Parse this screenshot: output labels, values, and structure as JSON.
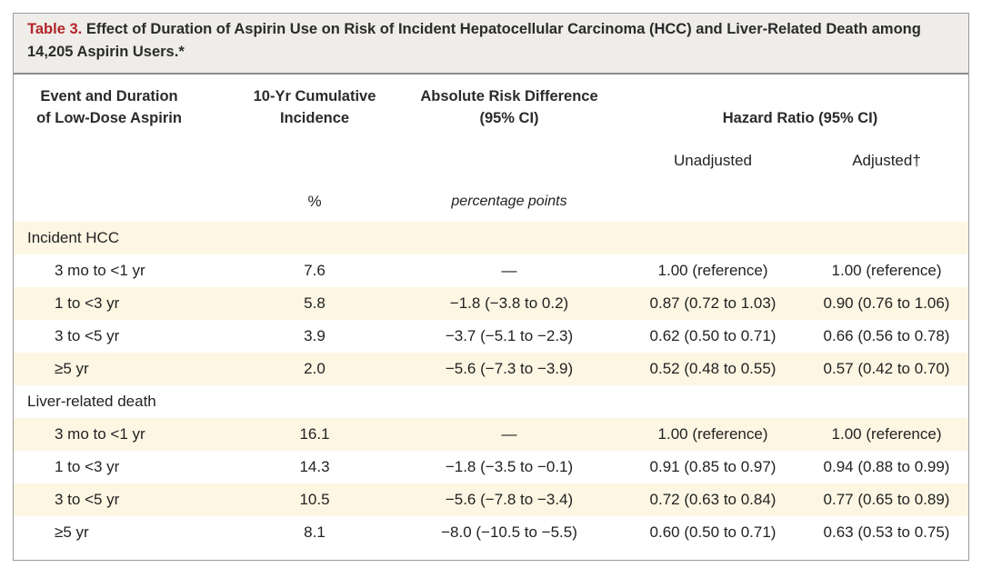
{
  "title": {
    "label": "Table 3.",
    "text": "Effect of Duration of Aspirin Use on Risk of Incident Hepatocellular Carcinoma (HCC) and Liver-Related Death among 14,205 Aspirin Users.*"
  },
  "header": {
    "event": [
      "Event and Duration",
      "of Low-Dose Aspirin"
    ],
    "incidence": [
      "10-Yr Cumulative",
      "Incidence"
    ],
    "risk": [
      "Absolute Risk Difference",
      "(95% CI)"
    ],
    "hazard": "Hazard Ratio (95% CI)",
    "unadjusted": "Unadjusted",
    "adjusted": "Adjusted†",
    "incidence_unit": "%",
    "risk_unit": "percentage points"
  },
  "table": {
    "groups": [
      {
        "label": "Incident HCC",
        "rows": [
          [
            "3 mo to <1 yr",
            "7.6",
            "—",
            "1.00 (reference)",
            "1.00 (reference)"
          ],
          [
            "1 to <3 yr",
            "5.8",
            "−1.8 (−3.8 to 0.2)",
            "0.87 (0.72 to 1.03)",
            "0.90 (0.76 to 1.06)"
          ],
          [
            "3 to <5 yr",
            "3.9",
            "−3.7 (−5.1 to −2.3)",
            "0.62 (0.50 to 0.71)",
            "0.66 (0.56 to 0.78)"
          ],
          [
            "≥5 yr",
            "2.0",
            "−5.6 (−7.3 to −3.9)",
            "0.52 (0.48 to 0.55)",
            "0.57 (0.42 to 0.70)"
          ]
        ]
      },
      {
        "label": "Liver-related death",
        "rows": [
          [
            "3 mo to <1 yr",
            "16.1",
            "—",
            "1.00 (reference)",
            "1.00 (reference)"
          ],
          [
            "1 to <3 yr",
            "14.3",
            "−1.8 (−3.5 to −0.1)",
            "0.91 (0.85 to 0.97)",
            "0.94 (0.88 to 0.99)"
          ],
          [
            "3 to <5 yr",
            "10.5",
            "−5.6 (−7.8 to −3.4)",
            "0.72 (0.63 to 0.84)",
            "0.77 (0.65 to 0.89)"
          ],
          [
            "≥5 yr",
            "8.1",
            "−8.0 (−10.5 to −5.5)",
            "0.60 (0.50 to 0.71)",
            "0.63 (0.53 to 0.75)"
          ]
        ]
      }
    ]
  }
}
